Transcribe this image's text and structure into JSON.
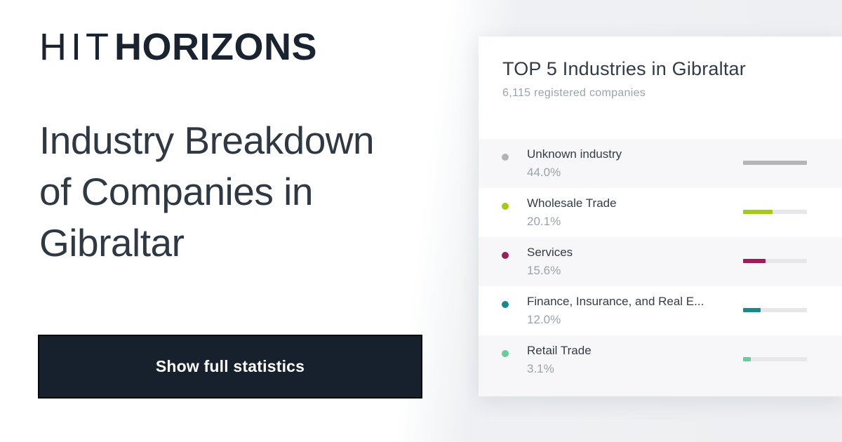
{
  "page": {
    "background_left": "#ffffff",
    "background_right": "#eef0f3"
  },
  "logo": {
    "prefix": "HIT",
    "suffix": "HORIZONS",
    "color": "#1a2430"
  },
  "headline": {
    "text": "Industry Breakdown\nof Companies in\nGibraltar",
    "color": "#2e3944"
  },
  "cta": {
    "label": "Show full statistics",
    "background": "#16212d",
    "border": "#000000",
    "text_color": "#ffffff"
  },
  "panel": {
    "title": "TOP 5 Industries in Gibraltar",
    "subtitle": "6,115 registered companies",
    "background": "#ffffff",
    "stripe_color": "#f7f7f9",
    "track_color": "#e7e7eb",
    "rows": [
      {
        "label": "Unknown industry",
        "pct": "44.0%",
        "color": "#b4b4b6",
        "bar_width": "100%"
      },
      {
        "label": "Wholesale Trade",
        "pct": "20.1%",
        "color": "#a5ca16",
        "bar_width": "45.7%"
      },
      {
        "label": "Services",
        "pct": "15.6%",
        "color": "#9d1c5a",
        "bar_width": "35.5%"
      },
      {
        "label": "Finance, Insurance, and Real E...",
        "pct": "12.0%",
        "color": "#168a8c",
        "bar_width": "27.3%"
      },
      {
        "label": "Retail Trade",
        "pct": "3.1%",
        "color": "#68cb9c",
        "bar_width": "12%"
      }
    ]
  },
  "chart_data": {
    "type": "bar",
    "orientation": "horizontal",
    "title": "TOP 5 Industries in Gibraltar",
    "subtitle": "6,115 registered companies",
    "categories": [
      "Unknown industry",
      "Wholesale Trade",
      "Services",
      "Finance, Insurance, and Real E...",
      "Retail Trade"
    ],
    "values": [
      44.0,
      20.1,
      15.6,
      12.0,
      3.1
    ],
    "unit": "%",
    "colors": [
      "#b4b4b6",
      "#a5ca16",
      "#9d1c5a",
      "#168a8c",
      "#68cb9c"
    ],
    "bar_scale_max": 44.0,
    "legend": false,
    "grid": false
  }
}
